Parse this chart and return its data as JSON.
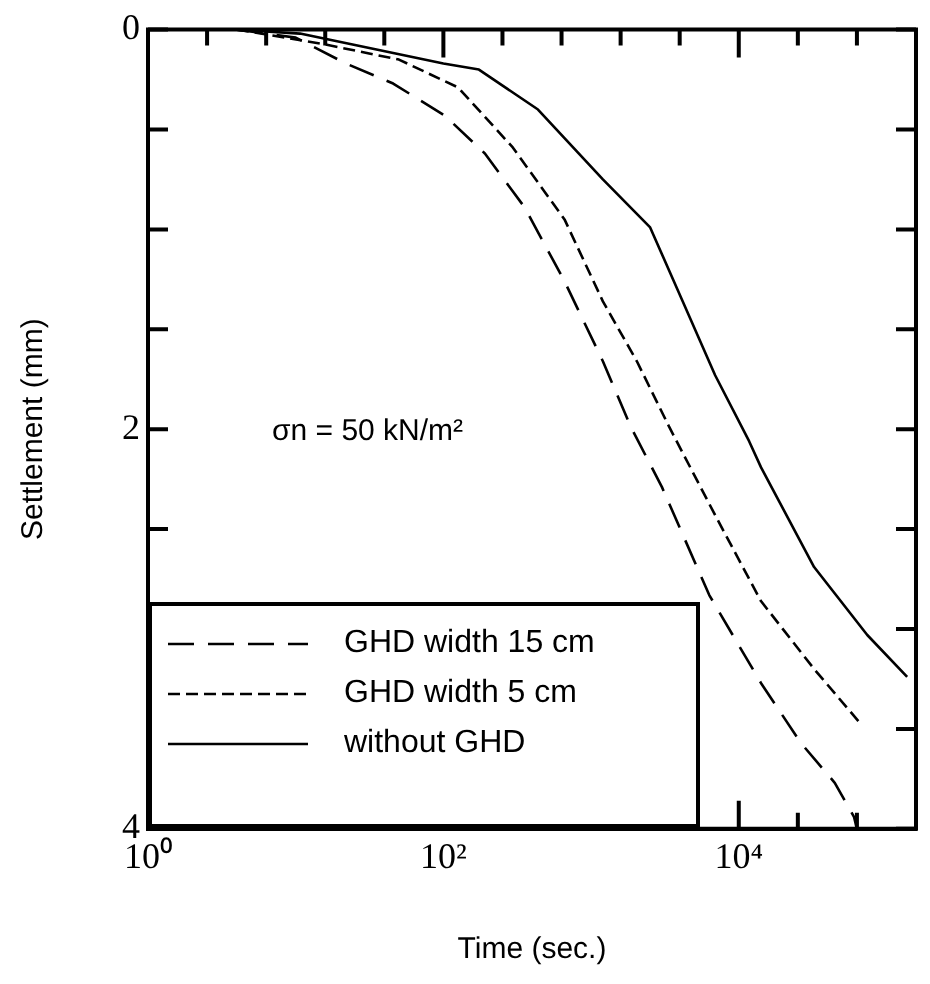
{
  "chart_data": {
    "type": "line",
    "xlabel": "Time (sec.)",
    "ylabel": "Settlement (mm)",
    "annotations": [
      "σn = 50 kN/m²"
    ],
    "log": "x",
    "grid": false,
    "legend": "bottom left",
    "marker": "none",
    "xlim": [
      1,
      158489
    ],
    "xticks": [
      {
        "value": 1,
        "label": "10⁰"
      },
      {
        "value": 2.512,
        "label": null
      },
      {
        "value": 6.31,
        "label": null
      },
      {
        "value": 15.85,
        "label": null
      },
      {
        "value": 39.81,
        "label": null
      },
      {
        "value": 100,
        "label": "10²"
      },
      {
        "value": 251.2,
        "label": null
      },
      {
        "value": 631,
        "label": null
      },
      {
        "value": 1585,
        "label": null
      },
      {
        "value": 3981,
        "label": null
      },
      {
        "value": 10000,
        "label": "10⁴"
      },
      {
        "value": 25119,
        "label": null
      },
      {
        "value": 63096,
        "label": null
      }
    ],
    "ylim": [
      4,
      0
    ],
    "yticks": [
      0,
      {
        "value": 0.5,
        "label": null
      },
      {
        "value": 1,
        "label": null
      },
      {
        "value": 1.5,
        "label": null
      },
      2,
      {
        "value": 2.5,
        "label": null
      },
      {
        "value": 3,
        "label": null
      },
      {
        "value": 3.5,
        "label": null
      },
      4
    ],
    "series": [
      {
        "name": "GHD width 15 cm",
        "color": "#000000",
        "line_style": "dashed",
        "x": [
          4,
          10,
          21.9,
          45.7,
          102,
          191,
          355,
          661,
          1202,
          1862,
          3020,
          6310,
          14125,
          26303,
          44668,
          60256,
          63096
        ],
        "values": [
          0,
          0.04,
          0.17,
          0.27,
          0.43,
          0.62,
          0.89,
          1.26,
          1.66,
          1.99,
          2.29,
          2.83,
          3.27,
          3.57,
          3.77,
          3.94,
          4
        ]
      },
      {
        "name": "GHD width 5 cm",
        "color": "#000000",
        "line_style": "dashed",
        "x": [
          4,
          14.8,
          50,
          126,
          295,
          661,
          1202,
          2042,
          3388,
          6918,
          14125,
          32359,
          66069
        ],
        "values": [
          0,
          0.07,
          0.15,
          0.29,
          0.59,
          0.95,
          1.36,
          1.66,
          1.99,
          2.43,
          2.86,
          3.2,
          3.47
        ]
      },
      {
        "name": "without GHD",
        "color": "#000000",
        "line_style": "solid",
        "x": [
          4,
          10.7,
          100,
          174,
          437,
          1202,
          2512,
          4169,
          6918,
          11749,
          14125,
          32359,
          74131,
          138038
        ],
        "values": [
          0,
          0.02,
          0.17,
          0.2,
          0.4,
          0.75,
          0.99,
          1.36,
          1.73,
          2.06,
          2.19,
          2.69,
          3.03,
          3.24
        ]
      }
    ]
  }
}
